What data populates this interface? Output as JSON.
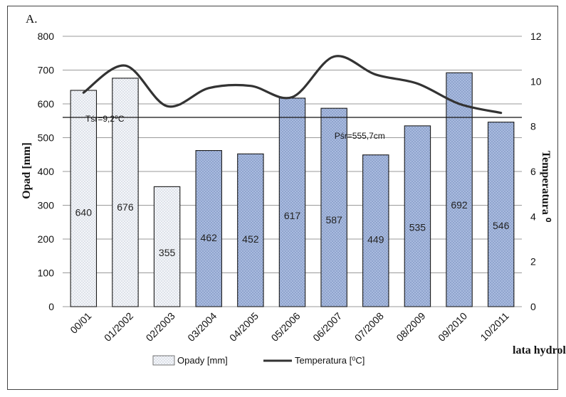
{
  "panel_label": "A.",
  "chart_data": {
    "type": "bar",
    "categories": [
      "00/01",
      "01/2002",
      "02/2003",
      "03/2004",
      "04/2005",
      "05/2006",
      "06/2007",
      "07/2008",
      "08/2009",
      "09/2010",
      "10/2011"
    ],
    "series": [
      {
        "name": "Opady [mm]",
        "type": "bar",
        "axis": "left",
        "values": [
          640,
          676,
          355,
          462,
          452,
          617,
          587,
          449,
          535,
          692,
          546
        ],
        "fill_styles": [
          "light-dotted",
          "light-dotted",
          "light-dotted",
          "blue",
          "blue",
          "blue",
          "blue",
          "blue",
          "blue",
          "blue",
          "blue"
        ]
      },
      {
        "name": "Temperatura [⁰C]",
        "type": "line",
        "axis": "right",
        "values": [
          9.5,
          10.7,
          8.9,
          9.7,
          9.8,
          9.3,
          11.1,
          10.3,
          9.9,
          9.0,
          8.6
        ]
      }
    ],
    "xlabel": "lata hydrologiczne",
    "ylabel": "Opad [mm]",
    "y2label": "Temperatura ⁰",
    "ylim": [
      0,
      800
    ],
    "yticks": [
      0,
      100,
      200,
      300,
      400,
      500,
      600,
      700,
      800
    ],
    "y2lim": [
      0,
      12
    ],
    "y2ticks": [
      0,
      2,
      4,
      6,
      8,
      10,
      12
    ],
    "grid": "horizontal",
    "legend": "bottom",
    "reference_line": {
      "value": 560,
      "axis": "left",
      "labels": [
        "Tśr=9,2⁰C",
        "Pśr=555,7cm"
      ]
    },
    "colors": {
      "bar_light": "#f2f4f8",
      "bar_blue": "#9fb3d9",
      "bar_edge": "#1a1a1a",
      "line": "#333333"
    }
  }
}
